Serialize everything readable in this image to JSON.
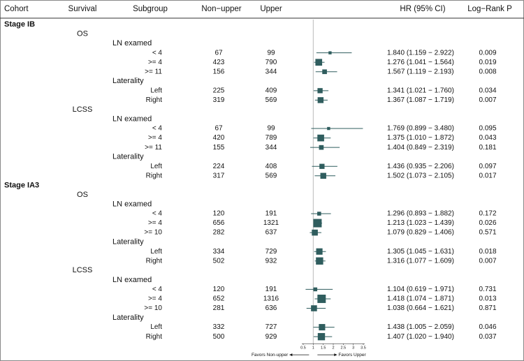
{
  "chart_data": {
    "type": "forest",
    "columns": [
      "Cohort",
      "Survival",
      "Subgroup",
      "Non−upper",
      "Upper",
      "HR (95% CI)",
      "Log−Rank P"
    ],
    "xlim": [
      0.5,
      3.5
    ],
    "xticks": [
      0.5,
      1,
      1.5,
      2,
      2.5,
      3,
      3.5
    ],
    "reference": 1,
    "left_label": "Favors Non-upper",
    "right_label": "Favors Upper",
    "color": "#2f5d5e",
    "rows": [
      {
        "cohort": "Stage IB"
      },
      {
        "survival": "OS"
      },
      {
        "group": "LN examed"
      },
      {
        "subgroup": "< 4",
        "non_upper": 67,
        "upper": 99,
        "hr": 1.84,
        "lo": 1.159,
        "hi": 2.922,
        "ci_text": "1.840 (1.159 − 2.922)",
        "p": 0.009
      },
      {
        "subgroup": ">= 4",
        "non_upper": 423,
        "upper": 790,
        "hr": 1.276,
        "lo": 1.041,
        "hi": 1.564,
        "ci_text": "1.276 (1.041 − 1.564)",
        "p": 0.019
      },
      {
        "subgroup": ">= 11",
        "non_upper": 156,
        "upper": 344,
        "hr": 1.567,
        "lo": 1.119,
        "hi": 2.193,
        "ci_text": "1.567 (1.119 − 2.193)",
        "p": 0.008
      },
      {
        "group": "Laterality"
      },
      {
        "subgroup": "Left",
        "non_upper": 225,
        "upper": 409,
        "hr": 1.341,
        "lo": 1.021,
        "hi": 1.76,
        "ci_text": "1.341 (1.021 − 1.760)",
        "p": 0.034
      },
      {
        "subgroup": "Right",
        "non_upper": 319,
        "upper": 569,
        "hr": 1.367,
        "lo": 1.087,
        "hi": 1.719,
        "ci_text": "1.367 (1.087 − 1.719)",
        "p": 0.007
      },
      {
        "survival": "LCSS"
      },
      {
        "group": "LN examed"
      },
      {
        "subgroup": "< 4",
        "non_upper": 67,
        "upper": 99,
        "hr": 1.769,
        "lo": 0.899,
        "hi": 3.48,
        "ci_text": "1.769 (0.899 − 3.480)",
        "p": 0.095
      },
      {
        "subgroup": ">= 4",
        "non_upper": 420,
        "upper": 789,
        "hr": 1.375,
        "lo": 1.01,
        "hi": 1.872,
        "ci_text": "1.375 (1.010 − 1.872)",
        "p": 0.043
      },
      {
        "subgroup": ">= 11",
        "non_upper": 155,
        "upper": 344,
        "hr": 1.404,
        "lo": 0.849,
        "hi": 2.319,
        "ci_text": "1.404 (0.849 − 2.319)",
        "p": 0.181
      },
      {
        "group": "Laterality"
      },
      {
        "subgroup": "Left",
        "non_upper": 224,
        "upper": 408,
        "hr": 1.436,
        "lo": 0.935,
        "hi": 2.206,
        "ci_text": "1.436 (0.935 − 2.206)",
        "p": 0.097
      },
      {
        "subgroup": "Right",
        "non_upper": 317,
        "upper": 569,
        "hr": 1.502,
        "lo": 1.073,
        "hi": 2.105,
        "ci_text": "1.502 (1.073 − 2.105)",
        "p": 0.017
      },
      {
        "cohort": "Stage IA3"
      },
      {
        "survival": "OS"
      },
      {
        "group": "LN examed"
      },
      {
        "subgroup": "< 4",
        "non_upper": 120,
        "upper": 191,
        "hr": 1.296,
        "lo": 0.893,
        "hi": 1.882,
        "ci_text": "1.296 (0.893 − 1.882)",
        "p": 0.172
      },
      {
        "subgroup": ">= 4",
        "non_upper": 656,
        "upper": 1321,
        "hr": 1.213,
        "lo": 1.023,
        "hi": 1.439,
        "ci_text": "1.213 (1.023 − 1.439)",
        "p": 0.026
      },
      {
        "subgroup": ">= 10",
        "non_upper": 282,
        "upper": 637,
        "hr": 1.079,
        "lo": 0.829,
        "hi": 1.406,
        "ci_text": "1.079 (0.829 − 1.406)",
        "p": 0.571
      },
      {
        "group": "Laterality"
      },
      {
        "subgroup": "Left",
        "non_upper": 334,
        "upper": 729,
        "hr": 1.305,
        "lo": 1.045,
        "hi": 1.631,
        "ci_text": "1.305 (1.045 − 1.631)",
        "p": 0.018
      },
      {
        "subgroup": "Right",
        "non_upper": 502,
        "upper": 932,
        "hr": 1.316,
        "lo": 1.077,
        "hi": 1.609,
        "ci_text": "1.316 (1.077 − 1.609)",
        "p": 0.007
      },
      {
        "survival": "LCSS"
      },
      {
        "group": "LN examed"
      },
      {
        "subgroup": "< 4",
        "non_upper": 120,
        "upper": 191,
        "hr": 1.104,
        "lo": 0.619,
        "hi": 1.971,
        "ci_text": "1.104 (0.619 − 1.971)",
        "p": 0.731
      },
      {
        "subgroup": ">= 4",
        "non_upper": 652,
        "upper": 1316,
        "hr": 1.418,
        "lo": 1.074,
        "hi": 1.871,
        "ci_text": "1.418 (1.074 − 1.871)",
        "p": 0.013
      },
      {
        "subgroup": ">= 10",
        "non_upper": 281,
        "upper": 636,
        "hr": 1.038,
        "lo": 0.664,
        "hi": 1.621,
        "ci_text": "1.038 (0.664 − 1.621)",
        "p": 0.871
      },
      {
        "group": "Laterality"
      },
      {
        "subgroup": "Left",
        "non_upper": 332,
        "upper": 727,
        "hr": 1.438,
        "lo": 1.005,
        "hi": 2.059,
        "ci_text": "1.438 (1.005 − 2.059)",
        "p": 0.046
      },
      {
        "subgroup": "Right",
        "non_upper": 500,
        "upper": 929,
        "hr": 1.407,
        "lo": 1.02,
        "hi": 1.94,
        "ci_text": "1.407 (1.020 − 1.940)",
        "p": 0.037
      }
    ]
  }
}
